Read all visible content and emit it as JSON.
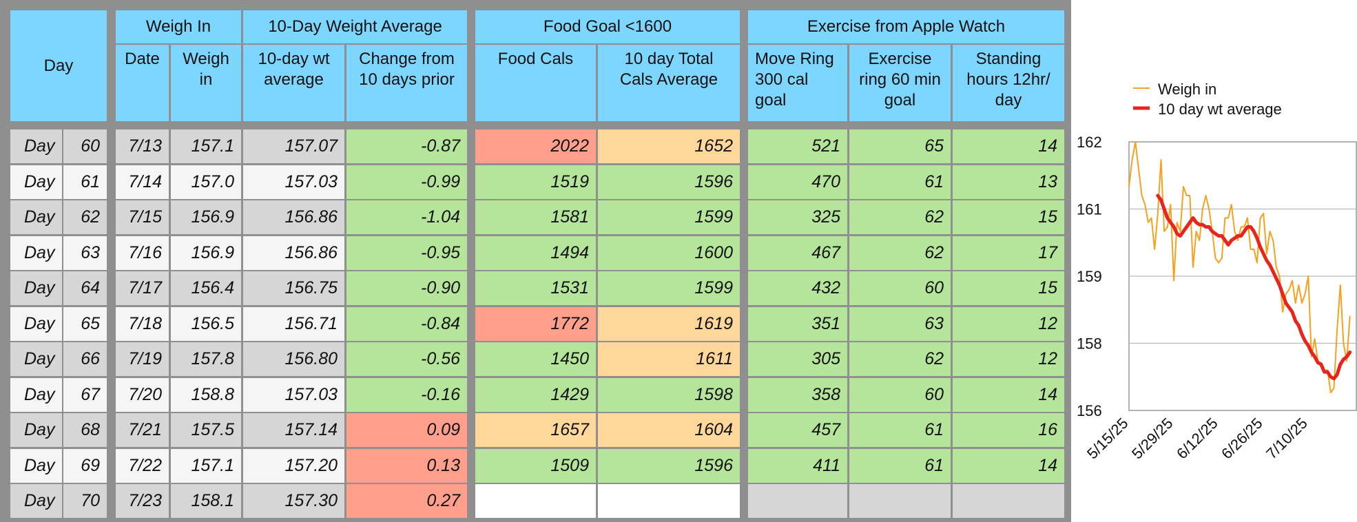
{
  "table": {
    "group_headers": [
      "Weigh In",
      "10-Day Weight Average",
      "Food Goal <1600",
      "Exercise from Apple Watch"
    ],
    "col_headers": {
      "day": "Day",
      "date": "Date",
      "weigh_in": "Weigh\nin",
      "avg": "10-day wt\naverage",
      "change": "Change from\n10 days prior",
      "food": "Food Cals",
      "total": "10 day Total\nCals Average",
      "move": "Move Ring\n300 cal\ngoal",
      "exercise": "Exercise\nring 60 min\ngoal",
      "standing": "Standing\nhours 12hr/\nday"
    },
    "rows": [
      {
        "label": "Day",
        "day": "60",
        "date": "7/13",
        "weigh": "157.1",
        "avg": "157.07",
        "change": "-0.87",
        "food": "2022",
        "total": "1652",
        "move": "521",
        "exercise": "65",
        "standing": "14"
      },
      {
        "label": "Day",
        "day": "61",
        "date": "7/14",
        "weigh": "157.0",
        "avg": "157.03",
        "change": "-0.99",
        "food": "1519",
        "total": "1596",
        "move": "470",
        "exercise": "61",
        "standing": "13"
      },
      {
        "label": "Day",
        "day": "62",
        "date": "7/15",
        "weigh": "156.9",
        "avg": "156.86",
        "change": "-1.04",
        "food": "1581",
        "total": "1599",
        "move": "325",
        "exercise": "62",
        "standing": "15"
      },
      {
        "label": "Day",
        "day": "63",
        "date": "7/16",
        "weigh": "156.9",
        "avg": "156.86",
        "change": "-0.95",
        "food": "1494",
        "total": "1600",
        "move": "467",
        "exercise": "62",
        "standing": "17"
      },
      {
        "label": "Day",
        "day": "64",
        "date": "7/17",
        "weigh": "156.4",
        "avg": "156.75",
        "change": "-0.90",
        "food": "1531",
        "total": "1599",
        "move": "432",
        "exercise": "60",
        "standing": "15"
      },
      {
        "label": "Day",
        "day": "65",
        "date": "7/18",
        "weigh": "156.5",
        "avg": "156.71",
        "change": "-0.84",
        "food": "1772",
        "total": "1619",
        "move": "351",
        "exercise": "63",
        "standing": "12"
      },
      {
        "label": "Day",
        "day": "66",
        "date": "7/19",
        "weigh": "157.8",
        "avg": "156.80",
        "change": "-0.56",
        "food": "1450",
        "total": "1611",
        "move": "305",
        "exercise": "62",
        "standing": "12"
      },
      {
        "label": "Day",
        "day": "67",
        "date": "7/20",
        "weigh": "158.8",
        "avg": "157.03",
        "change": "-0.16",
        "food": "1429",
        "total": "1598",
        "move": "358",
        "exercise": "60",
        "standing": "14"
      },
      {
        "label": "Day",
        "day": "68",
        "date": "7/21",
        "weigh": "157.5",
        "avg": "157.14",
        "change": "0.09",
        "food": "1657",
        "total": "1604",
        "move": "457",
        "exercise": "61",
        "standing": "16"
      },
      {
        "label": "Day",
        "day": "69",
        "date": "7/22",
        "weigh": "157.1",
        "avg": "157.20",
        "change": "0.13",
        "food": "1509",
        "total": "1596",
        "move": "411",
        "exercise": "61",
        "standing": "14"
      },
      {
        "label": "Day",
        "day": "70",
        "date": "7/23",
        "weigh": "158.1",
        "avg": "157.30",
        "change": "0.27",
        "food": "",
        "total": "",
        "move": "",
        "exercise": "",
        "standing": ""
      }
    ],
    "colors": {
      "header": "#7dd6ff",
      "grid": "#8f8f8f",
      "row_dark": "#d6d6d6",
      "row_light": "#f5f5f5",
      "good": "#b5e59a",
      "warn": "#ffd79a",
      "bad": "#ff9f8c",
      "empty": "#ffffff",
      "empty_grey": "#d6d6d6"
    },
    "cell_status": {
      "change": [
        "good",
        "good",
        "good",
        "good",
        "good",
        "good",
        "good",
        "good",
        "bad",
        "bad",
        "bad"
      ],
      "food": [
        "bad",
        "good",
        "good",
        "good",
        "good",
        "bad",
        "good",
        "good",
        "warn",
        "good",
        "empty"
      ],
      "total": [
        "warn",
        "good",
        "good",
        "good",
        "good",
        "warn",
        "warn",
        "good",
        "warn",
        "good",
        "empty"
      ],
      "exercise": [
        "good",
        "good",
        "good",
        "good",
        "good",
        "good",
        "good",
        "good",
        "good",
        "good",
        "empty_grey"
      ]
    }
  },
  "chart_data": {
    "type": "line",
    "x_tick_labels": [
      "5/15/25",
      "5/29/25",
      "6/12/25",
      "6/26/25",
      "7/10/25"
    ],
    "x_range": [
      "5/15/25",
      "7/25/25"
    ],
    "y_tick_labels": [
      "156",
      "158",
      "159",
      "161",
      "162"
    ],
    "ylim": [
      156.0,
      162.0
    ],
    "grid": true,
    "legend_position": "top",
    "series": [
      {
        "name": "Weigh in",
        "color": "#f7a01c",
        "points": [
          [
            "5/15/25",
            161.0
          ],
          [
            "5/16/25",
            161.6
          ],
          [
            "5/17/25",
            162.0
          ],
          [
            "5/18/25",
            161.4
          ],
          [
            "5/19/25",
            160.8
          ],
          [
            "5/20/25",
            160.6
          ],
          [
            "5/21/25",
            160.2
          ],
          [
            "5/22/25",
            160.3
          ],
          [
            "5/23/25",
            159.6
          ],
          [
            "5/24/25",
            160.4
          ],
          [
            "5/25/25",
            161.6
          ],
          [
            "5/26/25",
            160.0
          ],
          [
            "5/27/25",
            160.1
          ],
          [
            "5/28/25",
            160.6
          ],
          [
            "5/29/25",
            158.9
          ],
          [
            "5/30/25",
            160.2
          ],
          [
            "5/31/25",
            160.0
          ],
          [
            "6/1/25",
            161.0
          ],
          [
            "6/2/25",
            160.8
          ],
          [
            "6/3/25",
            160.8
          ],
          [
            "6/4/25",
            159.2
          ],
          [
            "6/5/25",
            160.0
          ],
          [
            "6/6/25",
            159.8
          ],
          [
            "6/7/25",
            160.5
          ],
          [
            "6/8/25",
            160.8
          ],
          [
            "6/9/25",
            160.5
          ],
          [
            "6/10/25",
            160.0
          ],
          [
            "6/11/25",
            159.4
          ],
          [
            "6/12/25",
            159.3
          ],
          [
            "6/13/25",
            159.4
          ],
          [
            "6/14/25",
            160.3
          ],
          [
            "6/15/25",
            160.3
          ],
          [
            "6/16/25",
            160.6
          ],
          [
            "6/17/25",
            160.0
          ],
          [
            "6/18/25",
            159.8
          ],
          [
            "6/19/25",
            160.1
          ],
          [
            "6/20/25",
            160.1
          ],
          [
            "6/21/25",
            160.3
          ],
          [
            "6/22/25",
            159.6
          ],
          [
            "6/23/25",
            159.6
          ],
          [
            "6/24/25",
            159.3
          ],
          [
            "6/25/25",
            160.3
          ],
          [
            "6/26/25",
            160.4
          ],
          [
            "6/27/25",
            159.5
          ],
          [
            "6/28/25",
            160.0
          ],
          [
            "6/29/25",
            159.8
          ],
          [
            "6/30/25",
            159.2
          ],
          [
            "7/1/25",
            159.0
          ],
          [
            "7/2/25",
            158.2
          ],
          [
            "7/3/25",
            158.6
          ],
          [
            "7/4/25",
            158.7
          ],
          [
            "7/5/25",
            158.9
          ],
          [
            "7/6/25",
            158.4
          ],
          [
            "7/7/25",
            158.8
          ],
          [
            "7/8/25",
            158.4
          ],
          [
            "7/9/25",
            158.6
          ],
          [
            "7/10/25",
            159.0
          ],
          [
            "7/11/25",
            157.2
          ],
          [
            "7/12/25",
            157.6
          ],
          [
            "7/13/25",
            157.1
          ],
          [
            "7/14/25",
            157.0
          ],
          [
            "7/15/25",
            156.9
          ],
          [
            "7/16/25",
            156.9
          ],
          [
            "7/17/25",
            156.4
          ],
          [
            "7/18/25",
            156.5
          ],
          [
            "7/19/25",
            157.8
          ],
          [
            "7/20/25",
            158.8
          ],
          [
            "7/21/25",
            157.5
          ],
          [
            "7/22/25",
            157.1
          ],
          [
            "7/23/25",
            158.1
          ]
        ]
      },
      {
        "name": "10 day wt average",
        "color": "#e8251c",
        "points": [
          [
            "5/24/25",
            160.8
          ],
          [
            "5/25/25",
            160.7
          ],
          [
            "5/26/25",
            160.5
          ],
          [
            "5/27/25",
            160.3
          ],
          [
            "5/28/25",
            160.2
          ],
          [
            "5/29/25",
            160.1
          ],
          [
            "5/30/25",
            159.95
          ],
          [
            "5/31/25",
            159.9
          ],
          [
            "6/1/25",
            160.0
          ],
          [
            "6/2/25",
            160.1
          ],
          [
            "6/3/25",
            160.2
          ],
          [
            "6/4/25",
            160.3
          ],
          [
            "6/5/25",
            160.2
          ],
          [
            "6/6/25",
            160.15
          ],
          [
            "6/7/25",
            160.15
          ],
          [
            "6/8/25",
            160.1
          ],
          [
            "6/9/25",
            160.1
          ],
          [
            "6/10/25",
            160.0
          ],
          [
            "6/11/25",
            159.95
          ],
          [
            "6/12/25",
            159.9
          ],
          [
            "6/13/25",
            159.9
          ],
          [
            "6/14/25",
            159.8
          ],
          [
            "6/15/25",
            159.7
          ],
          [
            "6/16/25",
            159.8
          ],
          [
            "6/17/25",
            159.85
          ],
          [
            "6/18/25",
            159.9
          ],
          [
            "6/19/25",
            159.9
          ],
          [
            "6/20/25",
            160.0
          ],
          [
            "6/21/25",
            160.1
          ],
          [
            "6/22/25",
            160.1
          ],
          [
            "6/23/25",
            160.0
          ],
          [
            "6/24/25",
            159.85
          ],
          [
            "6/25/25",
            159.65
          ],
          [
            "6/26/25",
            159.5
          ],
          [
            "6/27/25",
            159.35
          ],
          [
            "6/28/25",
            159.25
          ],
          [
            "6/29/25",
            159.1
          ],
          [
            "6/30/25",
            158.95
          ],
          [
            "7/1/25",
            158.8
          ],
          [
            "7/2/25",
            158.6
          ],
          [
            "7/3/25",
            158.4
          ],
          [
            "7/4/25",
            158.3
          ],
          [
            "7/5/25",
            158.2
          ],
          [
            "7/6/25",
            158.0
          ],
          [
            "7/7/25",
            157.9
          ],
          [
            "7/8/25",
            157.7
          ],
          [
            "7/9/25",
            157.55
          ],
          [
            "7/10/25",
            157.45
          ],
          [
            "7/11/25",
            157.3
          ],
          [
            "7/12/25",
            157.2
          ],
          [
            "7/13/25",
            157.07
          ],
          [
            "7/14/25",
            157.03
          ],
          [
            "7/15/25",
            156.86
          ],
          [
            "7/16/25",
            156.86
          ],
          [
            "7/17/25",
            156.75
          ],
          [
            "7/18/25",
            156.71
          ],
          [
            "7/19/25",
            156.8
          ],
          [
            "7/20/25",
            157.03
          ],
          [
            "7/21/25",
            157.14
          ],
          [
            "7/22/25",
            157.2
          ],
          [
            "7/23/25",
            157.3
          ]
        ]
      }
    ]
  }
}
